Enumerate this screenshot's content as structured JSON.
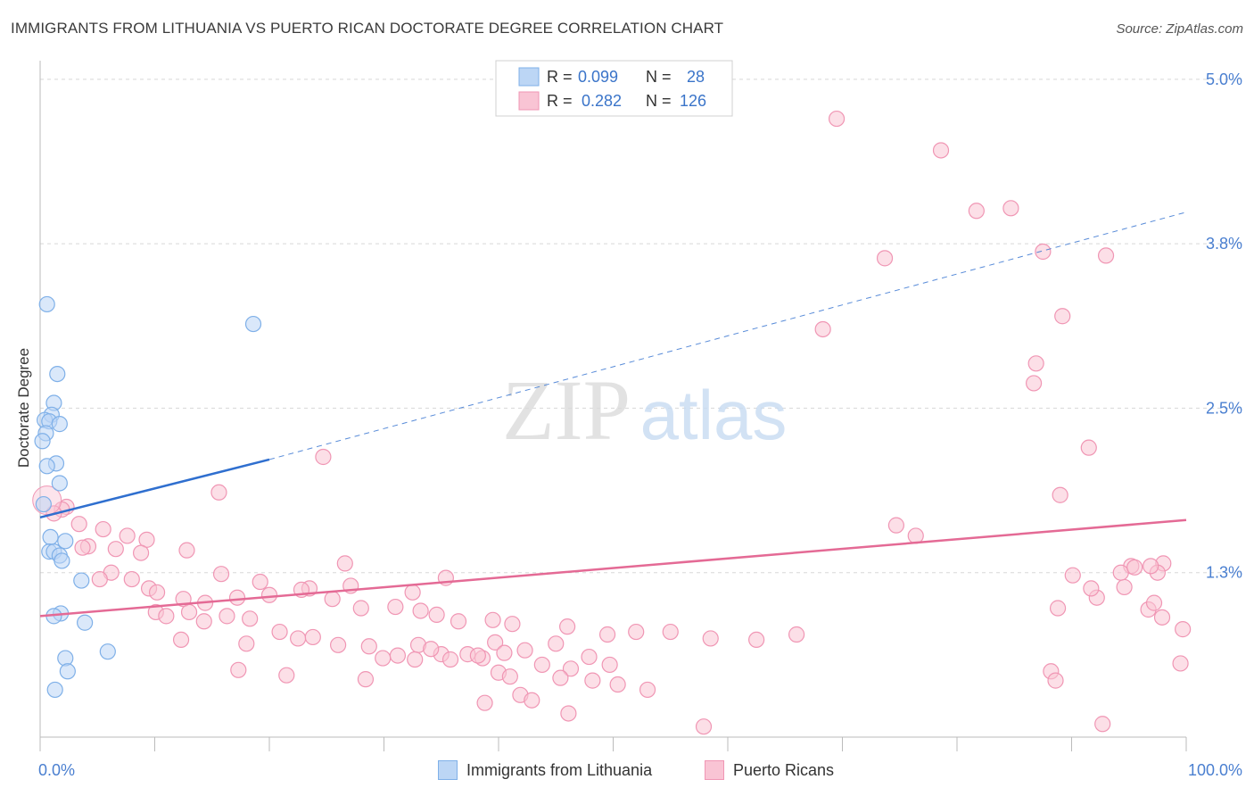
{
  "title": "IMMIGRANTS FROM LITHUANIA VS PUERTO RICAN DOCTORATE DEGREE CORRELATION CHART",
  "source": "Source: ZipAtlas.com",
  "watermark": {
    "zip": "ZIP",
    "atlas": "atlas"
  },
  "colors": {
    "blue_fill": "#bcd6f5",
    "blue_stroke": "#7fb0e8",
    "blue_line": "#2f6fcf",
    "pink_fill": "#f9c4d4",
    "pink_stroke": "#f096b4",
    "pink_line": "#e46a95",
    "axis_label": "#4a7fd0",
    "grid": "#d8d8d8"
  },
  "legend_top": {
    "rows": [
      {
        "r_label": "R = ",
        "r_value": "0.099",
        "n_label": "N = ",
        "n_value": "28"
      },
      {
        "r_label": "R = ",
        "r_value": "0.282",
        "n_label": "N = ",
        "n_value": "126"
      }
    ]
  },
  "legend_bottom": [
    "Immigrants from Lithuania",
    "Puerto Ricans"
  ],
  "chart_data": {
    "type": "scatter",
    "title": "IMMIGRANTS FROM LITHUANIA VS PUERTO RICAN DOCTORATE DEGREE CORRELATION CHART",
    "xlabel": "",
    "ylabel": "Doctorate Degree",
    "xlim": [
      0,
      100
    ],
    "ylim": [
      0,
      5.25
    ],
    "x_tick_labels": [
      "0.0%",
      "100.0%"
    ],
    "y_ticks": [
      1.25,
      2.5,
      3.75,
      5.0
    ],
    "y_tick_labels": [
      "1.3%",
      "2.5%",
      "3.8%",
      "5.0%"
    ],
    "grid": true,
    "series": [
      {
        "name": "Immigrants from Lithuania",
        "R": 0.099,
        "N": 28,
        "trend": {
          "x0": 0,
          "y0": 1.67,
          "x1": 20,
          "y1": 2.11,
          "dash_to_x": 100,
          "dash_to_y": 3.99
        },
        "points": [
          [
            0.6,
            3.29
          ],
          [
            1.5,
            2.76
          ],
          [
            1.2,
            2.54
          ],
          [
            1.0,
            2.45
          ],
          [
            0.4,
            2.41
          ],
          [
            0.8,
            2.4
          ],
          [
            1.7,
            2.38
          ],
          [
            0.5,
            2.31
          ],
          [
            0.2,
            2.25
          ],
          [
            1.4,
            2.08
          ],
          [
            0.6,
            2.06
          ],
          [
            1.7,
            1.93
          ],
          [
            0.9,
            1.52
          ],
          [
            2.2,
            1.49
          ],
          [
            0.8,
            1.41
          ],
          [
            1.2,
            1.41
          ],
          [
            1.7,
            1.38
          ],
          [
            1.9,
            1.34
          ],
          [
            3.6,
            1.19
          ],
          [
            1.8,
            0.94
          ],
          [
            1.2,
            0.92
          ],
          [
            3.9,
            0.87
          ],
          [
            2.2,
            0.6
          ],
          [
            5.9,
            0.65
          ],
          [
            2.4,
            0.5
          ],
          [
            1.3,
            0.36
          ],
          [
            18.6,
            3.14
          ],
          [
            0.3,
            1.77
          ]
        ]
      },
      {
        "name": "Puerto Ricans",
        "R": 0.282,
        "N": 126,
        "trend": {
          "x0": 0,
          "y0": 0.92,
          "x1": 100,
          "y1": 1.65
        },
        "points": [
          [
            69.5,
            4.7
          ],
          [
            78.6,
            4.46
          ],
          [
            81.7,
            4.0
          ],
          [
            84.7,
            4.02
          ],
          [
            73.7,
            3.64
          ],
          [
            87.5,
            3.69
          ],
          [
            93.0,
            3.66
          ],
          [
            89.2,
            3.2
          ],
          [
            68.3,
            3.1
          ],
          [
            86.9,
            2.84
          ],
          [
            86.7,
            2.69
          ],
          [
            91.5,
            2.2
          ],
          [
            89.0,
            1.84
          ],
          [
            74.7,
            1.61
          ],
          [
            76.4,
            1.53
          ],
          [
            24.7,
            2.13
          ],
          [
            15.6,
            1.86
          ],
          [
            2.3,
            1.75
          ],
          [
            1.9,
            1.73
          ],
          [
            1.2,
            1.7
          ],
          [
            3.4,
            1.62
          ],
          [
            5.5,
            1.58
          ],
          [
            7.6,
            1.53
          ],
          [
            9.3,
            1.5
          ],
          [
            4.2,
            1.45
          ],
          [
            3.7,
            1.44
          ],
          [
            6.6,
            1.43
          ],
          [
            8.8,
            1.4
          ],
          [
            12.8,
            1.42
          ],
          [
            26.6,
            1.32
          ],
          [
            35.4,
            1.21
          ],
          [
            15.8,
            1.24
          ],
          [
            19.2,
            1.18
          ],
          [
            23.5,
            1.13
          ],
          [
            27.1,
            1.15
          ],
          [
            32.5,
            1.1
          ],
          [
            8.0,
            1.2
          ],
          [
            6.2,
            1.25
          ],
          [
            5.2,
            1.2
          ],
          [
            9.5,
            1.13
          ],
          [
            10.2,
            1.1
          ],
          [
            12.5,
            1.05
          ],
          [
            14.4,
            1.02
          ],
          [
            17.2,
            1.06
          ],
          [
            20.0,
            1.08
          ],
          [
            22.8,
            1.12
          ],
          [
            25.5,
            1.05
          ],
          [
            28.0,
            0.98
          ],
          [
            31.0,
            0.99
          ],
          [
            33.2,
            0.96
          ],
          [
            34.6,
            0.93
          ],
          [
            36.5,
            0.88
          ],
          [
            39.5,
            0.89
          ],
          [
            41.2,
            0.86
          ],
          [
            46.0,
            0.84
          ],
          [
            49.5,
            0.78
          ],
          [
            52.0,
            0.8
          ],
          [
            62.5,
            0.74
          ],
          [
            66.0,
            0.78
          ],
          [
            88.8,
            0.98
          ],
          [
            96.7,
            0.97
          ],
          [
            92.2,
            1.06
          ],
          [
            94.6,
            1.14
          ],
          [
            97.2,
            1.02
          ],
          [
            95.2,
            1.3
          ],
          [
            98.0,
            1.32
          ],
          [
            99.7,
            0.82
          ],
          [
            97.5,
            1.25
          ],
          [
            96.9,
            1.3
          ],
          [
            91.7,
            1.13
          ],
          [
            90.1,
            1.23
          ],
          [
            94.3,
            1.25
          ],
          [
            95.5,
            1.29
          ],
          [
            10.1,
            0.95
          ],
          [
            11.0,
            0.92
          ],
          [
            13.0,
            0.95
          ],
          [
            14.3,
            0.88
          ],
          [
            16.3,
            0.92
          ],
          [
            18.3,
            0.9
          ],
          [
            20.9,
            0.8
          ],
          [
            22.5,
            0.75
          ],
          [
            23.8,
            0.76
          ],
          [
            26.0,
            0.7
          ],
          [
            28.7,
            0.69
          ],
          [
            31.2,
            0.62
          ],
          [
            33.0,
            0.7
          ],
          [
            35.0,
            0.63
          ],
          [
            38.6,
            0.6
          ],
          [
            39.7,
            0.72
          ],
          [
            40.5,
            0.64
          ],
          [
            42.3,
            0.66
          ],
          [
            45.0,
            0.71
          ],
          [
            47.9,
            0.61
          ],
          [
            49.7,
            0.55
          ],
          [
            55.0,
            0.8
          ],
          [
            12.3,
            0.74
          ],
          [
            18.0,
            0.71
          ],
          [
            29.9,
            0.6
          ],
          [
            32.7,
            0.59
          ],
          [
            34.1,
            0.67
          ],
          [
            35.8,
            0.59
          ],
          [
            37.3,
            0.63
          ],
          [
            38.2,
            0.62
          ],
          [
            40.0,
            0.49
          ],
          [
            41.0,
            0.46
          ],
          [
            43.8,
            0.55
          ],
          [
            46.3,
            0.52
          ],
          [
            48.2,
            0.43
          ],
          [
            50.4,
            0.4
          ],
          [
            53.0,
            0.36
          ],
          [
            17.3,
            0.51
          ],
          [
            21.5,
            0.47
          ],
          [
            28.4,
            0.44
          ],
          [
            38.8,
            0.26
          ],
          [
            41.9,
            0.32
          ],
          [
            42.9,
            0.28
          ],
          [
            46.1,
            0.18
          ],
          [
            57.9,
            0.08
          ],
          [
            45.4,
            0.45
          ],
          [
            58.5,
            0.75
          ],
          [
            88.2,
            0.5
          ],
          [
            88.6,
            0.43
          ],
          [
            99.5,
            0.56
          ],
          [
            97.9,
            0.91
          ],
          [
            92.7,
            0.1
          ]
        ]
      }
    ]
  }
}
